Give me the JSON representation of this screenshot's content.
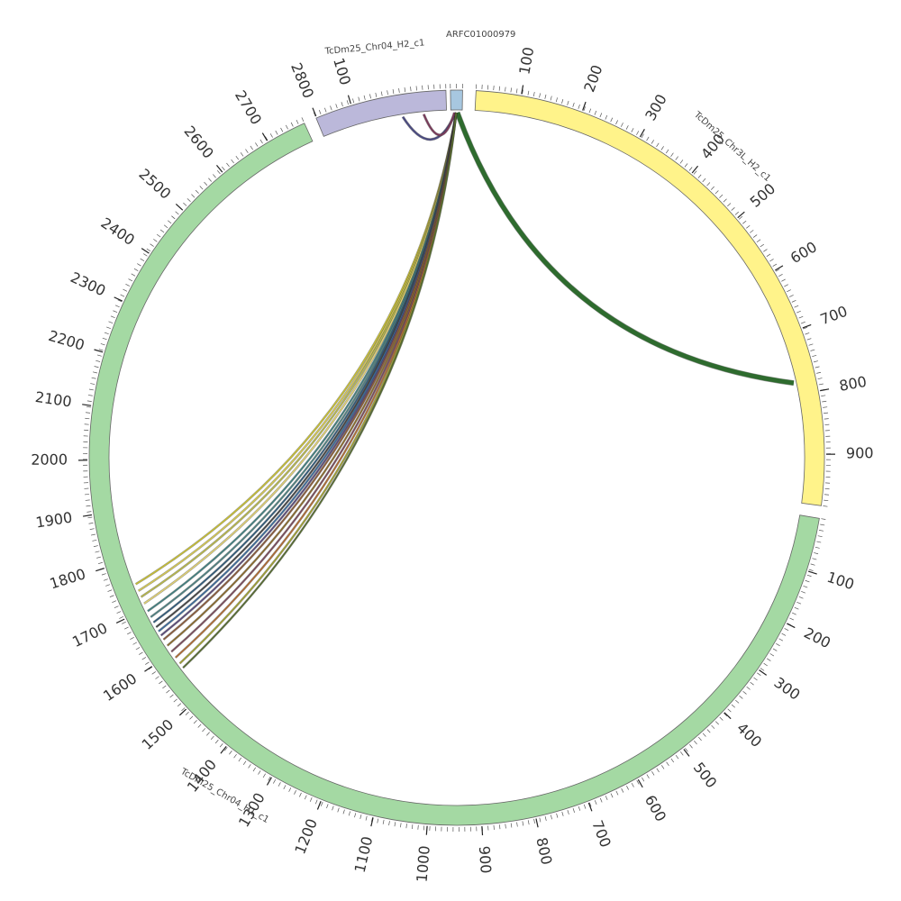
{
  "chart_data": {
    "type": "chord",
    "segments": [
      {
        "id": "tcdm25-chr3l-h2-c1",
        "label": "TcDm25_Chr3L_H2_c1",
        "color": "#fff38a",
        "start_deg": 3.0,
        "end_deg": 97.5,
        "tick_labels": [
          "100",
          "200",
          "300",
          "400",
          "500",
          "600",
          "700",
          "800",
          "900"
        ],
        "tick_fracs": [
          0.075,
          0.179,
          0.283,
          0.387,
          0.492,
          0.598,
          0.703,
          0.81,
          0.915
        ]
      },
      {
        "id": "tcdm25-chr04-h1-c1",
        "label": "TcDm25_Chr04_H1_c1",
        "color": "#a4d9a3",
        "start_deg": 99.5,
        "end_deg": 335.5,
        "tick_labels": [
          "100",
          "200",
          "300",
          "400",
          "500",
          "600",
          "700",
          "800",
          "900",
          "1000",
          "1100",
          "1200",
          "1300",
          "1400",
          "1500",
          "1600",
          "1700",
          "1800",
          "1900",
          "2000",
          "2100",
          "2200",
          "2300",
          "2400",
          "2500",
          "2600",
          "2700",
          "2800"
        ],
        "tick_fracs": [
          0.0356,
          0.0728,
          0.1084,
          0.1445,
          0.1805,
          0.2165,
          0.2525,
          0.2886,
          0.3246,
          0.3606,
          0.3966,
          0.4326,
          0.4686,
          0.5047,
          0.5407,
          0.5767,
          0.6127,
          0.6487,
          0.6847,
          0.7208,
          0.7568,
          0.7928,
          0.8288,
          0.8648,
          0.9008,
          0.9369,
          0.9729,
          1.0089
        ]
      },
      {
        "id": "tcdm25-chr04-h2-c1",
        "label": "TcDm25_Chr04_H2_c1",
        "color": "#bbb8da",
        "start_deg": 337.5,
        "end_deg": 358.3,
        "tick_labels": [
          "100"
        ],
        "tick_fracs": [
          0.28
        ]
      },
      {
        "id": "arfc01000979",
        "label": "ARFC01000979",
        "color": "#a7c7e0",
        "start_deg": 359.0,
        "end_deg": 360.9,
        "tick_labels": [],
        "tick_fracs": []
      }
    ],
    "links": [
      {
        "a": 0.1,
        "b": 77.5,
        "color": "#2e6b2e",
        "width": 5
      },
      {
        "a": 359.8,
        "b": 351.0,
        "color": "#4a4a80",
        "width": 2
      },
      {
        "a": 359.6,
        "b": 354.5,
        "color": "#7a3a5a",
        "width": 2
      },
      {
        "a": 359.9,
        "b": 248.5,
        "color": "#c8c030",
        "width": 1.5
      },
      {
        "a": 359.9,
        "b": 247.3,
        "color": "#d4c850",
        "width": 1.5
      },
      {
        "a": 359.9,
        "b": 246.2,
        "color": "#b8b848",
        "width": 1.5
      },
      {
        "a": 359.9,
        "b": 245.0,
        "color": "#e0d070",
        "width": 1.5
      },
      {
        "a": 359.9,
        "b": 243.6,
        "color": "#3f7f7f",
        "width": 1.5
      },
      {
        "a": 359.9,
        "b": 242.5,
        "color": "#4d8080",
        "width": 1.5
      },
      {
        "a": 359.9,
        "b": 241.5,
        "color": "#2f5a7a",
        "width": 1.5
      },
      {
        "a": 359.9,
        "b": 240.6,
        "color": "#444444",
        "width": 1.5
      },
      {
        "a": 359.9,
        "b": 239.8,
        "color": "#3a6a9a",
        "width": 1.5
      },
      {
        "a": 359.9,
        "b": 239.0,
        "color": "#5a4a7a",
        "width": 1.5
      },
      {
        "a": 359.9,
        "b": 238.2,
        "color": "#8a5a3a",
        "width": 1.5
      },
      {
        "a": 359.9,
        "b": 237.0,
        "color": "#8a6a2a",
        "width": 1.5
      },
      {
        "a": 359.9,
        "b": 235.8,
        "color": "#7a4a5a",
        "width": 1.5
      },
      {
        "a": 359.9,
        "b": 234.6,
        "color": "#b06a30",
        "width": 1.5
      },
      {
        "a": 359.9,
        "b": 233.4,
        "color": "#a0a030",
        "width": 1.5
      },
      {
        "a": 359.9,
        "b": 232.5,
        "color": "#556b2f",
        "width": 1.5
      }
    ]
  }
}
